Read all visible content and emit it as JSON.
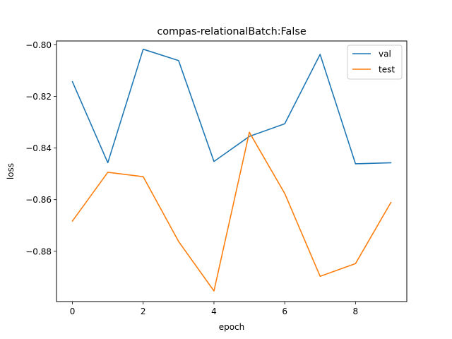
{
  "chart_data": {
    "type": "line",
    "title": "compas-relationalBatch:False",
    "xlabel": "epoch",
    "ylabel": "loss",
    "x": [
      0,
      1,
      2,
      3,
      4,
      5,
      6,
      7,
      8,
      9
    ],
    "xlim": [
      -0.45,
      9.45
    ],
    "ylim": [
      -0.8995,
      -0.7985
    ],
    "xticks": [
      0,
      2,
      4,
      6,
      8
    ],
    "xtick_labels": [
      "0",
      "2",
      "4",
      "6",
      "8"
    ],
    "yticks": [
      -0.88,
      -0.86,
      -0.84,
      -0.82,
      -0.8
    ],
    "ytick_labels": [
      "−0.88",
      "−0.86",
      "−0.84",
      "−0.82",
      "−0.80"
    ],
    "grid": false,
    "legend_position": "top-right",
    "series": [
      {
        "name": "val",
        "color": "#1f77b4",
        "values": [
          -0.8143,
          -0.8457,
          -0.8017,
          -0.8061,
          -0.8452,
          -0.8355,
          -0.8306,
          -0.8037,
          -0.8461,
          -0.8457
        ]
      },
      {
        "name": "test",
        "color": "#ff7f0e",
        "values": [
          -0.8683,
          -0.8494,
          -0.8511,
          -0.8762,
          -0.8954,
          -0.8339,
          -0.8576,
          -0.8897,
          -0.8848,
          -0.8611
        ]
      }
    ]
  }
}
